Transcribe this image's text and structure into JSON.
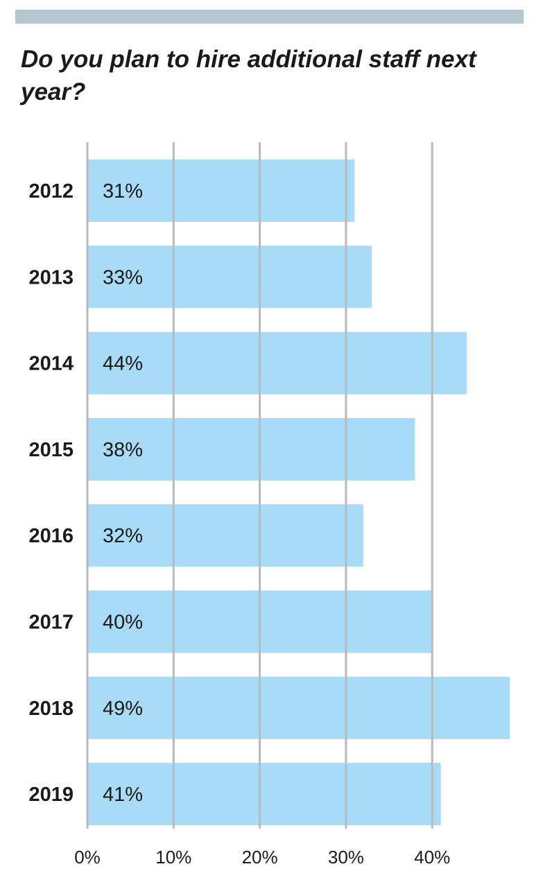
{
  "chart_data": {
    "type": "bar",
    "orientation": "horizontal",
    "title": "Do you plan to hire additional staff next year?",
    "categories": [
      "2012",
      "2013",
      "2014",
      "2015",
      "2016",
      "2017",
      "2018",
      "2019"
    ],
    "values": [
      31,
      33,
      44,
      38,
      32,
      40,
      49,
      41
    ],
    "data_labels": [
      "31%",
      "33%",
      "44%",
      "38%",
      "32%",
      "40%",
      "49%",
      "41%"
    ],
    "x_ticks": [
      {
        "value": 0,
        "label": "0%"
      },
      {
        "value": 10,
        "label": "10%"
      },
      {
        "value": 20,
        "label": "20%"
      },
      {
        "value": 30,
        "label": "30%"
      },
      {
        "value": 40,
        "label": "40%"
      }
    ],
    "xlim": [
      0,
      49
    ],
    "grid": "vertical",
    "bar_color": "#a8dcf6"
  },
  "colors": {
    "top_bar": "#b3c7d0",
    "gridline": "#b9b9bd",
    "text": "#1a1a1a"
  }
}
